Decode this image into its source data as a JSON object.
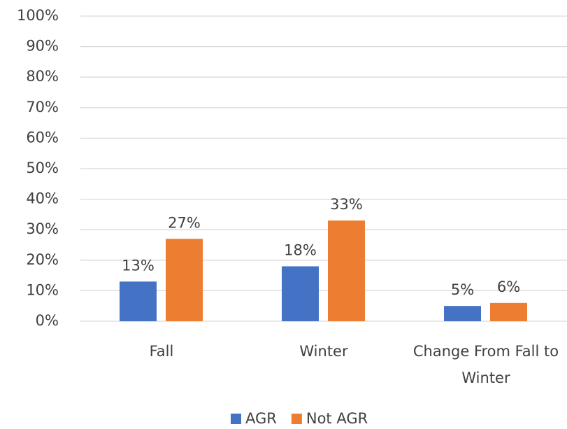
{
  "chart_data": {
    "type": "bar",
    "categories": [
      "Fall",
      "Winter",
      "Change From Fall to Winter"
    ],
    "series": [
      {
        "name": "AGR",
        "color": "#4472c4",
        "values": [
          13,
          18,
          5
        ],
        "value_labels": [
          "13%",
          "18%",
          "5%"
        ]
      },
      {
        "name": "Not AGR",
        "color": "#ed7d31",
        "values": [
          27,
          33,
          6
        ],
        "value_labels": [
          "27%",
          "33%",
          "6%"
        ]
      }
    ],
    "ylim": [
      0,
      100
    ],
    "yticks": [
      {
        "value": 0,
        "label": "0%"
      },
      {
        "value": 10,
        "label": "10%"
      },
      {
        "value": 20,
        "label": "20%"
      },
      {
        "value": 30,
        "label": "30%"
      },
      {
        "value": 40,
        "label": "40%"
      },
      {
        "value": 50,
        "label": "50%"
      },
      {
        "value": 60,
        "label": "60%"
      },
      {
        "value": 70,
        "label": "70%"
      },
      {
        "value": 80,
        "label": "80%"
      },
      {
        "value": 90,
        "label": "90%"
      },
      {
        "value": 100,
        "label": "100%"
      }
    ],
    "grid": true,
    "legend": "bottom"
  }
}
